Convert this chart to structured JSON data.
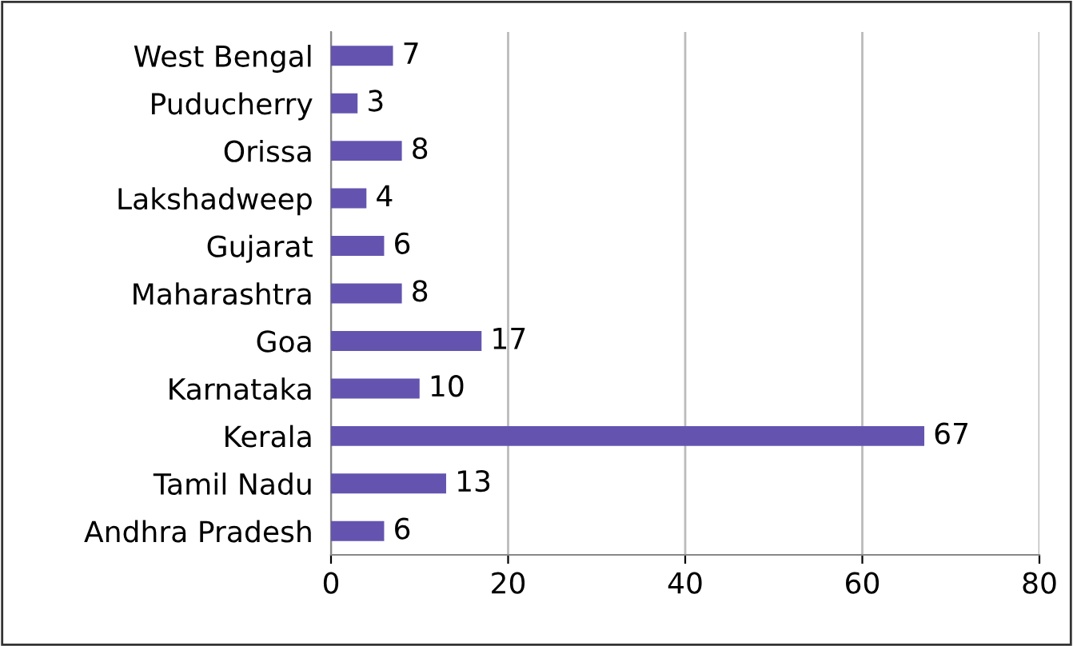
{
  "chart_data": {
    "type": "bar",
    "orientation": "horizontal",
    "categories": [
      "West Bengal",
      "Puducherry",
      "Orissa",
      "Lakshadweep",
      "Gujarat",
      "Maharashtra",
      "Goa",
      "Karnataka",
      "Kerala",
      "Tamil Nadu",
      "Andhra Pradesh"
    ],
    "values": [
      7,
      3,
      8,
      4,
      6,
      8,
      17,
      10,
      67,
      13,
      6
    ],
    "color": "#6454b0",
    "xlim": [
      0,
      80
    ],
    "xticks": [
      0,
      20,
      40,
      60,
      80
    ],
    "grid": "x",
    "data_labels": true
  }
}
